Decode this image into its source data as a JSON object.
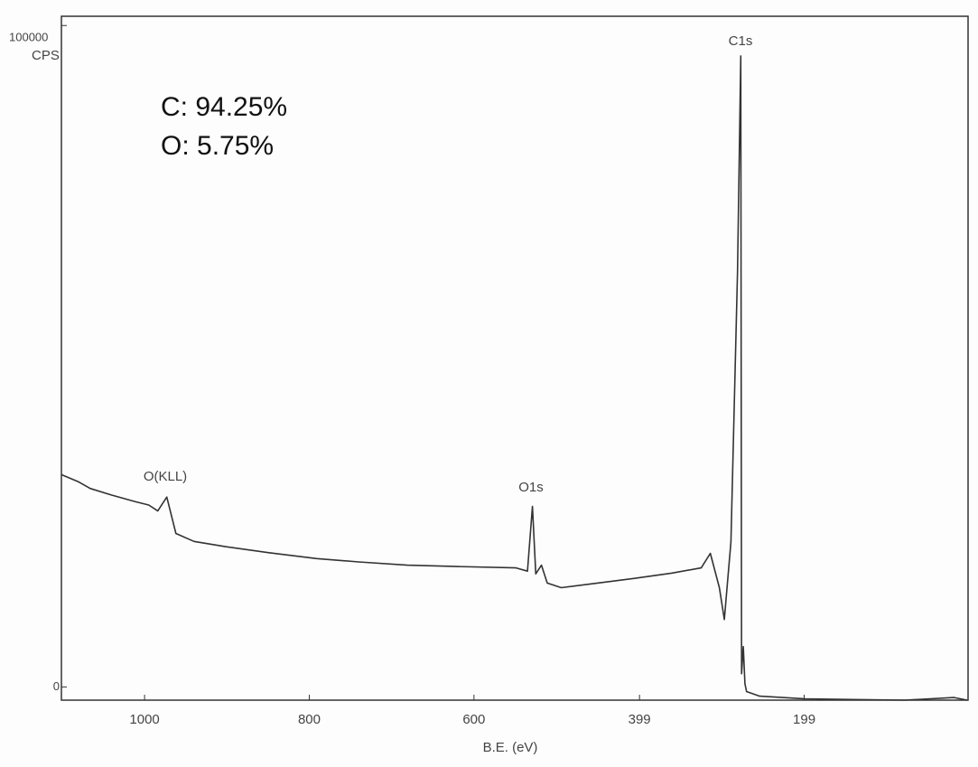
{
  "chart_data": {
    "type": "line",
    "xlabel": "B.E. (eV)",
    "ylabel": "CPS",
    "xlim": [
      1101,
      0
    ],
    "xticks": [
      1000,
      800,
      600,
      399,
      199
    ],
    "ylim": [
      -2000,
      101400
    ],
    "yticks": [
      0,
      100000
    ],
    "x": [
      1101,
      1080,
      1066,
      1040,
      1011,
      995,
      984,
      973,
      962,
      940,
      901,
      850,
      791,
      740,
      681,
      620,
      549,
      535,
      529,
      525,
      518,
      511,
      494,
      450,
      406,
      360,
      324,
      313,
      302,
      296,
      288,
      280,
      276,
      275,
      273,
      271,
      269,
      253,
      198,
      140,
      77,
      17,
      1
    ],
    "series": [
      {
        "name": "spectrum",
        "color": "#333333",
        "values": [
          32100,
          31000,
          30000,
          29000,
          28000,
          27500,
          26600,
          28700,
          23200,
          22000,
          21200,
          20300,
          19400,
          18900,
          18400,
          18200,
          18000,
          17500,
          27300,
          17100,
          18400,
          15700,
          15000,
          15700,
          16400,
          17200,
          18000,
          20200,
          15000,
          10200,
          21900,
          62800,
          95400,
          2000,
          6100,
          500,
          -700,
          -1400,
          -1800,
          -1900,
          -2000,
          -1600,
          -2000
        ]
      }
    ],
    "annotations": [
      "C:  94.25%",
      "O:  5.75%",
      "O(KLL)",
      "O1s",
      "C1s"
    ]
  }
}
